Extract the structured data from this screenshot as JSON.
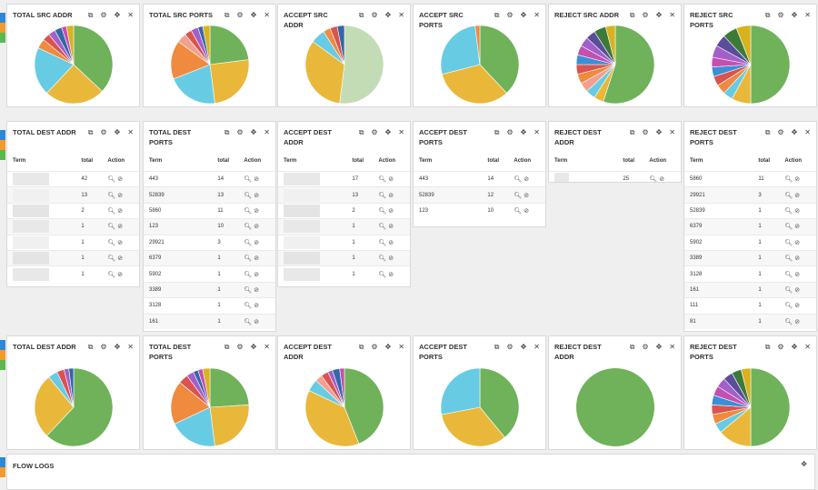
{
  "icons": {
    "copy": "copy-icon",
    "settings": "gear-icon",
    "move": "move-icon",
    "close": "close-icon"
  },
  "row1": [
    {
      "title": "TOTAL SRC ADDR",
      "slices": [
        {
          "v": 37,
          "c": "#6fb25a"
        },
        {
          "v": 25,
          "c": "#e9b83a"
        },
        {
          "v": 20,
          "c": "#67cbe3"
        },
        {
          "v": 4,
          "c": "#ef8a3f"
        },
        {
          "v": 3,
          "c": "#d9534f"
        },
        {
          "v": 3,
          "c": "#a25fc9"
        },
        {
          "v": 3,
          "c": "#3367a8"
        },
        {
          "v": 2,
          "c": "#c54fb0"
        },
        {
          "v": 3,
          "c": "#d8b21f"
        }
      ]
    },
    {
      "title": "TOTAL SRC PORTS",
      "slices": [
        {
          "v": 23,
          "c": "#6fb25a"
        },
        {
          "v": 25,
          "c": "#e9b83a"
        },
        {
          "v": 21,
          "c": "#67cbe3"
        },
        {
          "v": 16,
          "c": "#ef8a3f"
        },
        {
          "v": 4,
          "c": "#f2a08e"
        },
        {
          "v": 3,
          "c": "#d9534f"
        },
        {
          "v": 3,
          "c": "#a25fc9"
        },
        {
          "v": 2,
          "c": "#3367a8"
        },
        {
          "v": 3,
          "c": "#d8b21f"
        }
      ]
    },
    {
      "title": "ACCEPT SRC ADDR",
      "slices": [
        {
          "v": 52,
          "c": "#c3dcb6"
        },
        {
          "v": 33,
          "c": "#e9b83a"
        },
        {
          "v": 6,
          "c": "#67cbe3"
        },
        {
          "v": 3,
          "c": "#ef8a3f"
        },
        {
          "v": 3,
          "c": "#d9534f"
        },
        {
          "v": 3,
          "c": "#3367a8"
        }
      ]
    },
    {
      "title": "ACCEPT SRC PORTS",
      "slices": [
        {
          "v": 38,
          "c": "#6fb25a"
        },
        {
          "v": 33,
          "c": "#e9b83a"
        },
        {
          "v": 27,
          "c": "#67cbe3"
        },
        {
          "v": 2,
          "c": "#ef8a3f"
        }
      ]
    },
    {
      "title": "REJECT SRC ADDR",
      "slices": [
        {
          "v": 55,
          "c": "#6fb25a"
        },
        {
          "v": 4,
          "c": "#e9b83a"
        },
        {
          "v": 4,
          "c": "#67cbe3"
        },
        {
          "v": 4,
          "c": "#f2a08e"
        },
        {
          "v": 4,
          "c": "#ef8a3f"
        },
        {
          "v": 4,
          "c": "#d9534f"
        },
        {
          "v": 4,
          "c": "#3a8fd6"
        },
        {
          "v": 4,
          "c": "#c54fb0"
        },
        {
          "v": 4,
          "c": "#a25fc9"
        },
        {
          "v": 4,
          "c": "#5a4e9a"
        },
        {
          "v": 5,
          "c": "#3c7a3a"
        },
        {
          "v": 4,
          "c": "#d8b21f"
        }
      ]
    },
    {
      "title": "REJECT SRC PORTS",
      "slices": [
        {
          "v": 50,
          "c": "#6fb25a"
        },
        {
          "v": 8,
          "c": "#e9b83a"
        },
        {
          "v": 4,
          "c": "#67cbe3"
        },
        {
          "v": 4,
          "c": "#ef8a3f"
        },
        {
          "v": 4,
          "c": "#d9534f"
        },
        {
          "v": 4,
          "c": "#3a8fd6"
        },
        {
          "v": 4,
          "c": "#c54fb0"
        },
        {
          "v": 5,
          "c": "#a25fc9"
        },
        {
          "v": 5,
          "c": "#5a4e9a"
        },
        {
          "v": 6,
          "c": "#3c7a3a"
        },
        {
          "v": 6,
          "c": "#d8b21f"
        }
      ]
    }
  ],
  "row2": [
    {
      "title": "TOTAL DEST ADDR",
      "headers": [
        "Term",
        "total",
        "Action"
      ],
      "rows": [
        {
          "term": "",
          "total": "42"
        },
        {
          "term": "",
          "total": "13"
        },
        {
          "term": "",
          "total": "2"
        },
        {
          "term": "",
          "total": "1"
        },
        {
          "term": "",
          "total": "1"
        },
        {
          "term": "",
          "total": "1"
        },
        {
          "term": "",
          "total": "1"
        }
      ]
    },
    {
      "title": "TOTAL DEST PORTS",
      "headers": [
        "Term",
        "total",
        "Action"
      ],
      "rows": [
        {
          "term": "443",
          "total": "14"
        },
        {
          "term": "52839",
          "total": "13"
        },
        {
          "term": "5860",
          "total": "11"
        },
        {
          "term": "123",
          "total": "10"
        },
        {
          "term": "29921",
          "total": "3"
        },
        {
          "term": "6379",
          "total": "1"
        },
        {
          "term": "5902",
          "total": "1"
        },
        {
          "term": "3389",
          "total": "1"
        },
        {
          "term": "3128",
          "total": "1"
        },
        {
          "term": "161",
          "total": "1"
        }
      ]
    },
    {
      "title": "ACCEPT DEST ADDR",
      "headers": [
        "Term",
        "total",
        "Action"
      ],
      "rows": [
        {
          "term": "",
          "total": "17"
        },
        {
          "term": "",
          "total": "13"
        },
        {
          "term": "",
          "total": "2"
        },
        {
          "term": "",
          "total": "1"
        },
        {
          "term": "",
          "total": "1"
        },
        {
          "term": "",
          "total": "1"
        },
        {
          "term": "",
          "total": "1"
        }
      ]
    },
    {
      "title": "ACCEPT DEST PORTS",
      "headers": [
        "Term",
        "total",
        "Action"
      ],
      "rows": [
        {
          "term": "443",
          "total": "14"
        },
        {
          "term": "52839",
          "total": "12"
        },
        {
          "term": "123",
          "total": "10"
        }
      ]
    },
    {
      "title": "REJECT DEST ADDR",
      "headers": [
        "Term",
        "total",
        "Action"
      ],
      "rows": [
        {
          "term": "",
          "total": "25"
        }
      ]
    },
    {
      "title": "REJECT DEST PORTS",
      "headers": [
        "Term",
        "total",
        "Action"
      ],
      "rows": [
        {
          "term": "5860",
          "total": "11"
        },
        {
          "term": "29921",
          "total": "3"
        },
        {
          "term": "52839",
          "total": "1"
        },
        {
          "term": "6379",
          "total": "1"
        },
        {
          "term": "5902",
          "total": "1"
        },
        {
          "term": "3389",
          "total": "1"
        },
        {
          "term": "3128",
          "total": "1"
        },
        {
          "term": "161",
          "total": "1"
        },
        {
          "term": "111",
          "total": "1"
        },
        {
          "term": "81",
          "total": "1"
        }
      ]
    }
  ],
  "row3": [
    {
      "title": "TOTAL DEST ADDR",
      "slices": [
        {
          "v": 62,
          "c": "#6fb25a"
        },
        {
          "v": 27,
          "c": "#e9b83a"
        },
        {
          "v": 4,
          "c": "#67cbe3"
        },
        {
          "v": 3,
          "c": "#d9534f"
        },
        {
          "v": 2,
          "c": "#a25fc9"
        },
        {
          "v": 2,
          "c": "#3367a8"
        }
      ]
    },
    {
      "title": "TOTAL DEST PORTS",
      "slices": [
        {
          "v": 24,
          "c": "#6fb25a"
        },
        {
          "v": 24,
          "c": "#e9b83a"
        },
        {
          "v": 20,
          "c": "#67cbe3"
        },
        {
          "v": 18,
          "c": "#ef8a3f"
        },
        {
          "v": 4,
          "c": "#d9534f"
        },
        {
          "v": 3,
          "c": "#a25fc9"
        },
        {
          "v": 2,
          "c": "#3367a8"
        },
        {
          "v": 2,
          "c": "#c54fb0"
        },
        {
          "v": 3,
          "c": "#d8b21f"
        }
      ]
    },
    {
      "title": "ACCEPT DEST ADDR",
      "slices": [
        {
          "v": 44,
          "c": "#6fb25a"
        },
        {
          "v": 38,
          "c": "#e9b83a"
        },
        {
          "v": 5,
          "c": "#67cbe3"
        },
        {
          "v": 3,
          "c": "#f2a08e"
        },
        {
          "v": 3,
          "c": "#d9534f"
        },
        {
          "v": 2,
          "c": "#a25fc9"
        },
        {
          "v": 3,
          "c": "#3367a8"
        },
        {
          "v": 2,
          "c": "#c54fb0"
        }
      ]
    },
    {
      "title": "ACCEPT DEST PORTS",
      "slices": [
        {
          "v": 39,
          "c": "#6fb25a"
        },
        {
          "v": 33,
          "c": "#e9b83a"
        },
        {
          "v": 28,
          "c": "#67cbe3"
        }
      ]
    },
    {
      "title": "REJECT DEST ADDR",
      "slices": [
        {
          "v": 100,
          "c": "#6fb25a"
        }
      ]
    },
    {
      "title": "REJECT DEST PORTS",
      "slices": [
        {
          "v": 50,
          "c": "#6fb25a"
        },
        {
          "v": 14,
          "c": "#e9b83a"
        },
        {
          "v": 4,
          "c": "#67cbe3"
        },
        {
          "v": 4,
          "c": "#ef8a3f"
        },
        {
          "v": 4,
          "c": "#d9534f"
        },
        {
          "v": 4,
          "c": "#3a8fd6"
        },
        {
          "v": 4,
          "c": "#c54fb0"
        },
        {
          "v": 4,
          "c": "#a25fc9"
        },
        {
          "v": 4,
          "c": "#5a4e9a"
        },
        {
          "v": 4,
          "c": "#3c7a3a"
        },
        {
          "v": 4,
          "c": "#d8b21f"
        }
      ]
    }
  ],
  "flow_logs": {
    "title": "FLOW LOGS"
  }
}
